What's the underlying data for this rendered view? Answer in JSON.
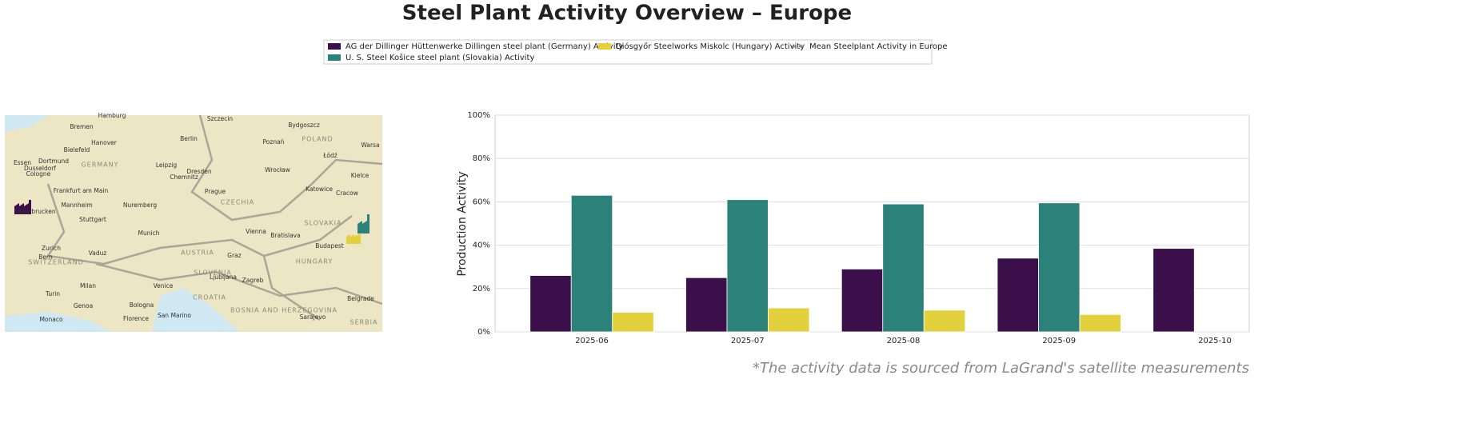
{
  "chart_data": {
    "type": "bar",
    "title": "Steel Plant Activity Overview – Europe",
    "y_label": "Production Activity",
    "footnote": "*The activity data is sourced from LaGrand's satellite measurements",
    "categories": [
      "2025-06",
      "2025-07",
      "2025-08",
      "2025-09",
      "2025-10"
    ],
    "series": [
      {
        "name": "AG der Dillinger Hüttenwerke Dillingen steel plant (Germany) Activity",
        "color": "#3b0f4a",
        "values": [
          26,
          25,
          29,
          34,
          38.5
        ]
      },
      {
        "name": "U. S. Steel Košice steel plant (Slovakia) Activity",
        "color": "#2c8279",
        "values": [
          63,
          61,
          59,
          59.5,
          null
        ]
      },
      {
        "name": "Diósgyőr Steelworks Miskolc (Hungary) Activity",
        "color": "#e2d13c",
        "values": [
          9,
          11,
          10,
          8,
          null
        ]
      }
    ],
    "mean_line": {
      "name": "Mean Steelplant Activity in Europe",
      "color": "#888888"
    },
    "ylim": [
      0,
      100
    ],
    "yticks": [
      {
        "value": 0,
        "label": "0%"
      },
      {
        "value": 20,
        "label": "20%"
      },
      {
        "value": 40,
        "label": "40%"
      },
      {
        "value": 60,
        "label": "60%"
      },
      {
        "value": 80,
        "label": "80%"
      },
      {
        "value": 100,
        "label": "100%"
      }
    ],
    "grid": true,
    "map_labels": [
      "Hamburg",
      "Bremen",
      "Hanover",
      "Berlin",
      "Szczecin",
      "Bydgoszcz",
      "Poznań",
      "POLAND",
      "Warsa",
      "Bielefeld",
      "Dortmund",
      "Essen",
      "Dusseldorf",
      "Cologne",
      "GERMANY",
      "Leipzig",
      "Dresden",
      "Chemnitz",
      "Wrocław",
      "Łódź",
      "Kielce",
      "Frankfurt am Main",
      "Prague",
      "Katowice",
      "Cracow",
      "Mannheim",
      "Nuremberg",
      "CZECHIA",
      "Saarbrucken",
      "Stuttgart",
      "SLOVAKIA",
      "Munich",
      "Vienna",
      "Bratislava",
      "Budapest",
      "Zurich",
      "Vaduz",
      "Bern",
      "SWITZERLAND",
      "AUSTRIA",
      "Graz",
      "HUNGARY",
      "SLOVENIA",
      "Ljubljana",
      "Zagreb",
      "Milan",
      "Venice",
      "Turin",
      "Genoa",
      "Bologna",
      "CROATIA",
      "BOSNIA AND HERZEGOVINA",
      "Belgrade",
      "San Marino",
      "Florence",
      "Monaco",
      "Sarajevo",
      "SERBIA"
    ]
  }
}
